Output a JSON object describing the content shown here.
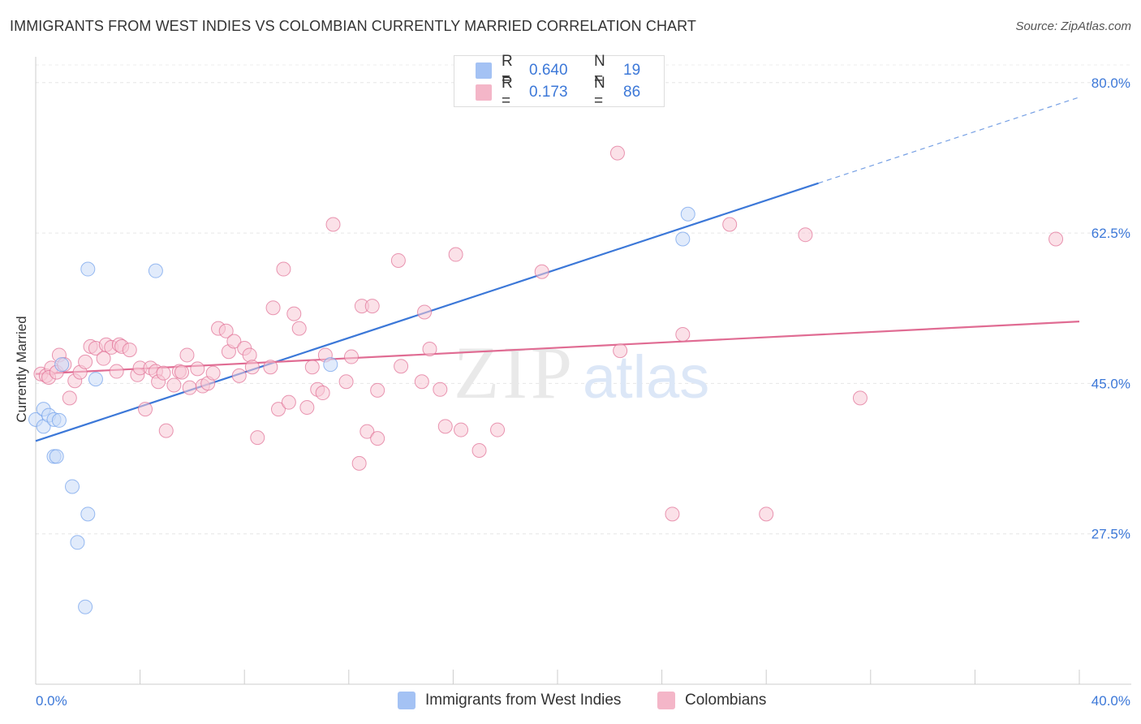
{
  "header": {
    "title": "IMMIGRANTS FROM WEST INDIES VS COLOMBIAN CURRENTLY MARRIED CORRELATION CHART",
    "source": "Source: ZipAtlas.com"
  },
  "watermark": {
    "zip": "ZIP",
    "atlas": "atlas"
  },
  "legend": {
    "rows": [
      {
        "r_label": "R =",
        "r_value": "0.640",
        "n_label": "N =",
        "n_value": "19",
        "color": "#a4c2f4"
      },
      {
        "r_label": "R =",
        "r_value": "0.173",
        "n_label": "N =",
        "n_value": "86",
        "color": "#f4b6c8"
      }
    ]
  },
  "bottom_legend": {
    "items": [
      {
        "label": "Immigrants from West Indies",
        "color": "#a4c2f4"
      },
      {
        "label": "Colombians",
        "color": "#f4b6c8"
      }
    ]
  },
  "chart_data": {
    "type": "scatter",
    "title": "IMMIGRANTS FROM WEST INDIES VS COLOMBIAN CURRENTLY MARRIED CORRELATION CHART",
    "xlabel": "",
    "ylabel": "Currently Married",
    "xlim": [
      0,
      40
    ],
    "ylim": [
      10,
      83
    ],
    "x_tick_labels": [
      "0.0%",
      "40.0%"
    ],
    "y_ticks": [
      27.5,
      45.0,
      62.5,
      80.0
    ],
    "y_tick_labels": [
      "27.5%",
      "45.0%",
      "62.5%",
      "80.0%"
    ],
    "grid": true,
    "series": [
      {
        "name": "Immigrants from West Indies",
        "color": "#6d9eeb",
        "fill": "#c9daf8",
        "trend": {
          "x0": 0,
          "y0": 38.3,
          "x1": 30,
          "y1": 68.3,
          "dash_to_x": 40,
          "dash_to_y": 78.3,
          "color": "#3c78d8"
        },
        "points": [
          [
            0.0,
            40.8
          ],
          [
            0.3,
            40.0
          ],
          [
            0.3,
            42.0
          ],
          [
            0.5,
            41.3
          ],
          [
            0.7,
            40.8
          ],
          [
            0.9,
            40.7
          ],
          [
            0.7,
            36.5
          ],
          [
            0.8,
            36.5
          ],
          [
            1.4,
            33.0
          ],
          [
            1.0,
            47.2
          ],
          [
            2.3,
            45.5
          ],
          [
            2.0,
            58.3
          ],
          [
            4.6,
            58.1
          ],
          [
            2.0,
            29.8
          ],
          [
            1.6,
            26.5
          ],
          [
            1.9,
            19.0
          ],
          [
            11.3,
            47.2
          ],
          [
            24.8,
            61.8
          ],
          [
            25.0,
            64.7
          ]
        ]
      },
      {
        "name": "Colombians",
        "color": "#e06c93",
        "fill": "#f8c8d6",
        "trend": {
          "x0": 0,
          "y0": 46.1,
          "x1": 40,
          "y1": 52.2,
          "color": "#e06c93"
        },
        "points": [
          [
            0.2,
            46.1
          ],
          [
            0.4,
            45.9
          ],
          [
            0.6,
            46.8
          ],
          [
            0.5,
            45.7
          ],
          [
            0.8,
            46.3
          ],
          [
            0.9,
            48.3
          ],
          [
            1.1,
            47.2
          ],
          [
            1.3,
            43.3
          ],
          [
            1.5,
            45.3
          ],
          [
            1.7,
            46.3
          ],
          [
            1.9,
            47.5
          ],
          [
            2.1,
            49.3
          ],
          [
            2.3,
            49.1
          ],
          [
            2.6,
            47.9
          ],
          [
            2.7,
            49.5
          ],
          [
            2.9,
            49.2
          ],
          [
            3.2,
            49.5
          ],
          [
            3.3,
            49.3
          ],
          [
            3.6,
            48.9
          ],
          [
            3.1,
            46.4
          ],
          [
            3.9,
            46.0
          ],
          [
            4.0,
            46.8
          ],
          [
            4.2,
            42.0
          ],
          [
            4.4,
            46.8
          ],
          [
            4.6,
            46.4
          ],
          [
            4.7,
            45.2
          ],
          [
            4.9,
            46.2
          ],
          [
            5.0,
            39.5
          ],
          [
            5.3,
            44.8
          ],
          [
            5.5,
            46.4
          ],
          [
            5.6,
            46.3
          ],
          [
            5.8,
            48.3
          ],
          [
            5.9,
            44.5
          ],
          [
            6.2,
            46.7
          ],
          [
            6.4,
            44.7
          ],
          [
            6.6,
            45.0
          ],
          [
            6.8,
            46.2
          ],
          [
            7.0,
            51.4
          ],
          [
            7.3,
            51.1
          ],
          [
            7.4,
            48.7
          ],
          [
            7.6,
            49.9
          ],
          [
            7.8,
            45.9
          ],
          [
            8.0,
            49.1
          ],
          [
            8.2,
            48.3
          ],
          [
            8.3,
            46.9
          ],
          [
            8.5,
            38.7
          ],
          [
            9.0,
            46.9
          ],
          [
            9.1,
            53.8
          ],
          [
            9.3,
            42.0
          ],
          [
            9.5,
            58.3
          ],
          [
            9.7,
            42.8
          ],
          [
            9.9,
            53.1
          ],
          [
            10.1,
            51.4
          ],
          [
            10.4,
            42.2
          ],
          [
            10.6,
            46.9
          ],
          [
            10.8,
            44.3
          ],
          [
            11.0,
            43.9
          ],
          [
            11.1,
            48.3
          ],
          [
            11.4,
            63.5
          ],
          [
            11.9,
            45.2
          ],
          [
            12.1,
            48.1
          ],
          [
            12.4,
            35.7
          ],
          [
            12.5,
            54.0
          ],
          [
            12.7,
            39.4
          ],
          [
            12.9,
            54.0
          ],
          [
            13.1,
            44.2
          ],
          [
            13.1,
            38.6
          ],
          [
            13.9,
            59.3
          ],
          [
            14.0,
            47.0
          ],
          [
            14.8,
            45.2
          ],
          [
            14.9,
            53.3
          ],
          [
            15.1,
            49.0
          ],
          [
            15.5,
            44.3
          ],
          [
            15.7,
            40.0
          ],
          [
            16.1,
            60.0
          ],
          [
            16.3,
            39.6
          ],
          [
            17.0,
            37.2
          ],
          [
            17.7,
            39.6
          ],
          [
            19.4,
            58.0
          ],
          [
            22.3,
            71.8
          ],
          [
            22.4,
            48.8
          ],
          [
            24.4,
            29.8
          ],
          [
            24.8,
            50.7
          ],
          [
            26.6,
            63.5
          ],
          [
            28.0,
            29.8
          ],
          [
            29.5,
            62.3
          ],
          [
            31.6,
            43.3
          ],
          [
            39.1,
            61.8
          ]
        ]
      }
    ]
  }
}
